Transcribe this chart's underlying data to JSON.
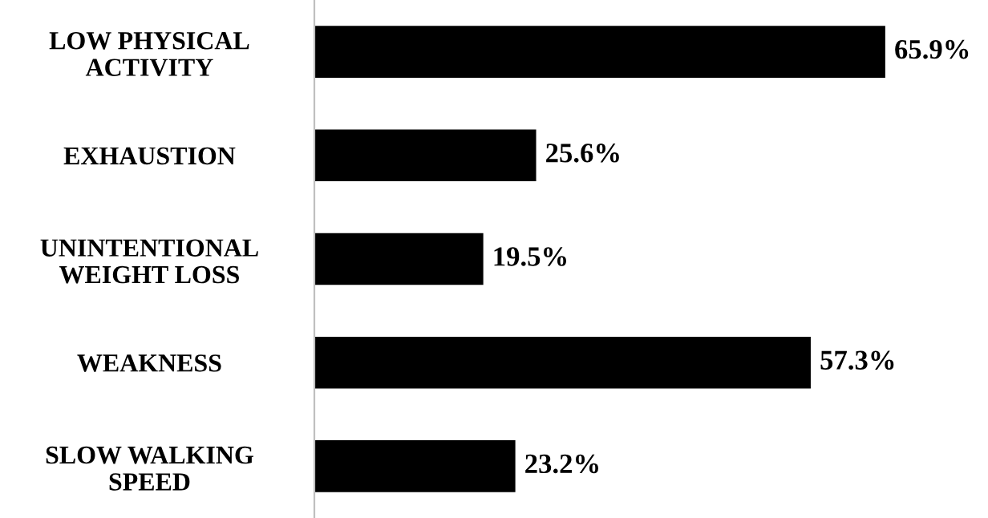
{
  "chart_data": {
    "type": "bar",
    "orientation": "horizontal",
    "categories": [
      "LOW PHYSICAL\nACTIVITY",
      "EXHAUSTION",
      "UNINTENTIONAL\nWEIGHT LOSS",
      "WEAKNESS",
      "SLOW WALKING\nSPEED"
    ],
    "values": [
      65.9,
      25.6,
      19.5,
      57.3,
      23.2
    ],
    "value_labels": [
      "65.9%",
      "25.6%",
      "19.5%",
      "57.3%",
      "23.2%"
    ],
    "color": "#000000",
    "grid": false,
    "legend": false
  }
}
